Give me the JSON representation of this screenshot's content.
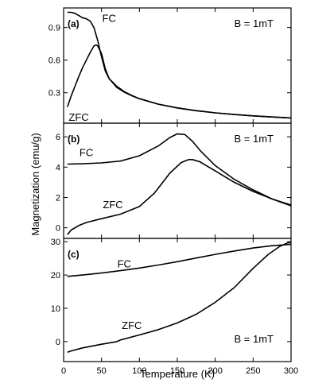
{
  "chart_data": {
    "type": "line",
    "xlabel": "Temperature (K)",
    "ylabel": "Magnetization (emu/g)",
    "xlim": [
      0,
      300
    ],
    "x_ticks": [
      0,
      50,
      100,
      150,
      200,
      250,
      300
    ],
    "grid": false,
    "legend": "none",
    "panels": [
      {
        "label": "(a)",
        "annotation": "B = 1mT",
        "ylim": [
          0.02,
          1.08
        ],
        "y_ticks": [
          0.3,
          0.6,
          0.9
        ],
        "series": [
          {
            "name": "FC",
            "x": [
              5,
              10,
              15,
              20,
              25,
              30,
              35,
              40,
              45,
              50,
              55,
              60,
              70,
              80,
              90,
              100,
              125,
              150,
              175,
              200,
              225,
              250,
              275,
              300
            ],
            "y": [
              1.04,
              1.04,
              1.03,
              1.01,
              0.99,
              0.98,
              0.96,
              0.9,
              0.78,
              0.63,
              0.5,
              0.43,
              0.36,
              0.31,
              0.275,
              0.245,
              0.195,
              0.16,
              0.135,
              0.115,
              0.1,
              0.087,
              0.077,
              0.068
            ]
          },
          {
            "name": "ZFC",
            "x": [
              5,
              10,
              15,
              20,
              25,
              30,
              35,
              40,
              43,
              45,
              50,
              55,
              60,
              70,
              80,
              90,
              100,
              125,
              150,
              175,
              200,
              225,
              250,
              275,
              300
            ],
            "y": [
              0.17,
              0.27,
              0.36,
              0.45,
              0.53,
              0.6,
              0.67,
              0.73,
              0.74,
              0.73,
              0.66,
              0.52,
              0.43,
              0.35,
              0.305,
              0.272,
              0.245,
              0.195,
              0.16,
              0.135,
              0.115,
              0.1,
              0.087,
              0.077,
              0.068
            ]
          }
        ]
      },
      {
        "label": "(b)",
        "annotation": "B = 1mT",
        "ylim": [
          -0.7,
          6.9
        ],
        "y_ticks": [
          0,
          2,
          4,
          6
        ],
        "series": [
          {
            "name": "FC",
            "x": [
              5,
              25,
              50,
              75,
              100,
              125,
              140,
              150,
              160,
              170,
              180,
              200,
              225,
              250,
              275,
              300
            ],
            "y": [
              4.2,
              4.22,
              4.28,
              4.4,
              4.75,
              5.4,
              5.95,
              6.2,
              6.15,
              5.7,
              5.1,
              4.1,
              3.2,
              2.5,
              1.9,
              1.5
            ]
          },
          {
            "name": "ZFC",
            "x": [
              5,
              10,
              20,
              30,
              50,
              75,
              100,
              120,
              140,
              155,
              165,
              170,
              180,
              200,
              225,
              250,
              275,
              300
            ],
            "y": [
              -0.45,
              -0.15,
              0.15,
              0.35,
              0.6,
              0.9,
              1.4,
              2.3,
              3.6,
              4.3,
              4.5,
              4.5,
              4.35,
              3.75,
              3.0,
              2.4,
              1.9,
              1.45
            ]
          }
        ]
      },
      {
        "label": "(c)",
        "annotation": "B = 1mT",
        "ylim": [
          -6,
          31
        ],
        "y_ticks": [
          0,
          10,
          20,
          30
        ],
        "series": [
          {
            "name": "FC",
            "x": [
              5,
              25,
              50,
              75,
              100,
              125,
              150,
              175,
              200,
              225,
              250,
              275,
              300
            ],
            "y": [
              19.6,
              20.0,
              20.6,
              21.3,
              22.1,
              23.0,
              24.0,
              25.1,
              26.2,
              27.2,
              28.1,
              28.8,
              29.2
            ]
          },
          {
            "name": "ZFC",
            "x": [
              5,
              10,
              25,
              50,
              70,
              75,
              100,
              125,
              150,
              175,
              200,
              225,
              250,
              270,
              285,
              295,
              300
            ],
            "y": [
              -3.2,
              -2.8,
              -1.9,
              -0.8,
              0.0,
              0.5,
              2.0,
              3.6,
              5.6,
              8.2,
              11.8,
              16.2,
              22.0,
              26.2,
              28.6,
              29.6,
              29.8
            ]
          }
        ]
      }
    ],
    "series_labels": [
      {
        "panel": 0,
        "text": "FC",
        "x": 60,
        "y": 0.99
      },
      {
        "panel": 0,
        "text": "ZFC",
        "x": 20,
        "y": 0.08
      },
      {
        "panel": 1,
        "text": "FC",
        "x": 30,
        "y": 5.0
      },
      {
        "panel": 1,
        "text": "ZFC",
        "x": 65,
        "y": 1.55
      },
      {
        "panel": 2,
        "text": "FC",
        "x": 80,
        "y": 23.5
      },
      {
        "panel": 2,
        "text": "ZFC",
        "x": 90,
        "y": 5.0
      }
    ]
  }
}
